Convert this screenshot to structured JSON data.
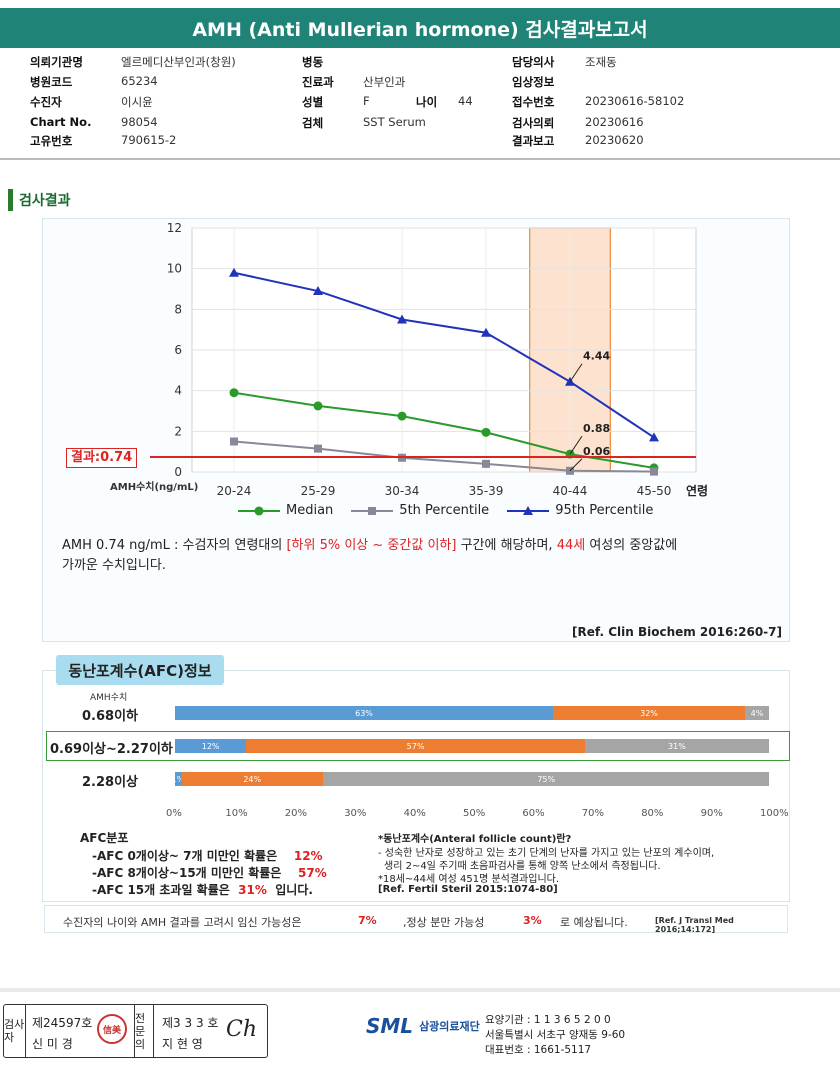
{
  "title": "AMH (Anti Mullerian hormone) 검사결과보고서",
  "info": {
    "institution_label": "의뢰기관명",
    "institution": "엘르메디산부인과(창원)",
    "ward_label": "병동",
    "ward": "",
    "doctor_label": "담당의사",
    "doctor": "조재동",
    "hospital_code_label": "병원코드",
    "hospital_code": "65234",
    "dept_label": "진료과",
    "dept": "산부인과",
    "clinical_label": "임상정보",
    "clinical": "",
    "patient_label": "수진자",
    "patient": "이시윤",
    "sex_label": "성별",
    "sex": "F",
    "age_label": "나이",
    "age": "44",
    "receipt_label": "접수번호",
    "receipt": "20230616-58102",
    "chart_label": "Chart No.",
    "chart": "98054",
    "specimen_label": "검체",
    "specimen": "SST Serum",
    "request_label": "검사의뢰",
    "request": "20230616",
    "unique_label": "고유번호",
    "unique": "790615-2",
    "report_label": "결과보고",
    "report": "20230620"
  },
  "section_title": "검사결과",
  "chart_data": {
    "type": "line",
    "categories": [
      "20-24",
      "25-29",
      "30-34",
      "35-39",
      "40-44",
      "45-50"
    ],
    "x_axis_suffix": "연령",
    "ylabel": "AMH수치(ng/mL)",
    "ylim": [
      0,
      12
    ],
    "yticks": [
      0,
      2,
      4,
      6,
      8,
      10,
      12
    ],
    "grid": true,
    "highlight_category": "40-44",
    "result_line": {
      "label": "결과:0.74",
      "value": 0.74
    },
    "series": [
      {
        "name": "Median",
        "values": [
          3.9,
          3.25,
          2.75,
          1.95,
          0.88,
          0.2
        ],
        "color": "#2a9a2a",
        "marker": "circle"
      },
      {
        "name": "5th Percentile",
        "values": [
          1.5,
          1.15,
          0.7,
          0.4,
          0.06,
          0.02
        ],
        "color": "#888899",
        "marker": "square"
      },
      {
        "name": "95th Percentile",
        "values": [
          9.8,
          8.9,
          7.5,
          6.85,
          4.44,
          1.7
        ],
        "color": "#2233bb",
        "marker": "triangle"
      }
    ],
    "annotations": [
      "4.44",
      "0.88",
      "0.06"
    ]
  },
  "description": {
    "part1": "AMH  0.74 ng/mL : 수검자의 연령대의 ",
    "range": "[하위 5% 이상 ~ 중간값 이하]",
    "part2": " 구간에 해당하며, ",
    "age": "44세",
    "part3": " 여성의 중앙값에",
    "line2": "가까운 수치입니다."
  },
  "ref1": "[Ref. Clin Biochem 2016:260-7]",
  "afc": {
    "tab": "동난포계수(AFC)정보",
    "amh_label": "AMH수치",
    "rows": [
      {
        "label": "0.68이하",
        "blue": 63,
        "orange": 32,
        "gray": 4,
        "blue_t": "63%",
        "orange_t": "32%",
        "gray_t": "4%"
      },
      {
        "label": "0.69이상~2.27이하",
        "blue": 12,
        "orange": 57,
        "gray": 31,
        "blue_t": "12%",
        "orange_t": "57%",
        "gray_t": "31%"
      },
      {
        "label": "2.28이상",
        "blue": 1,
        "orange": 24,
        "gray": 75,
        "blue_t": "1%",
        "orange_t": "24%",
        "gray_t": "75%"
      }
    ],
    "x_ticks": [
      "0%",
      "10%",
      "20%",
      "30%",
      "40%",
      "50%",
      "60%",
      "70%",
      "80%",
      "90%",
      "100%"
    ],
    "colors": {
      "blue": "#5b9bd5",
      "orange": "#ed7d31",
      "gray": "#a5a5a5"
    }
  },
  "distribution": {
    "title": "AFC분포",
    "l1": "-AFC  0개이상~ 7개 미만인 확률은",
    "v1": "12%",
    "l2": "-AFC  8개이상~15개 미만인 확률은",
    "v2": "57%",
    "l3": "-AFC  15개 초과일 확률은",
    "v3": "31%",
    "l3_end": "입니다."
  },
  "afc_note": {
    "n1": "*동난포계수(Anteral  follicle count)란?",
    "n2": "- 성숙한 난자로 성장하고 있는 초기 단계의 난자를 가지고 있는 난포의 계수이며,",
    "n3": "  생리 2~4일 주기때 초음파검사를 통해 양쪽 난소에서 측정됩니다.",
    "n4": "*18세~44세 여성 451명 분석결과입니다.",
    "n5": "[Ref. Fertil Steril 2015:1074-80]"
  },
  "pregnancy": {
    "p1": "수진자의  나이와 AMH 결과를 고려시 임신 가능성은",
    "v1": "7%",
    "p2": ",정상 분만 가능성",
    "v2": "3%",
    "p3": "로 예상됩니다.",
    "ref": "[Ref. J Transl Med 2016;14:172]"
  },
  "footer": {
    "examiner_col": "검사자",
    "examiner_no": "제24597호",
    "examiner_name": "신 미 경",
    "seal": "信美",
    "specialist_col": "전문의",
    "specialist_no": "제3 3 3 호",
    "specialist_name": "지 현 영",
    "signature": "Ch",
    "logo": "SML",
    "org": "삼광의료재단",
    "code": "요양기관 : 1 1 3 6 5 2 0 0",
    "address": "서울특별시 서초구 양재동 9-60",
    "phone": "대표번호 : 1661-5117"
  }
}
